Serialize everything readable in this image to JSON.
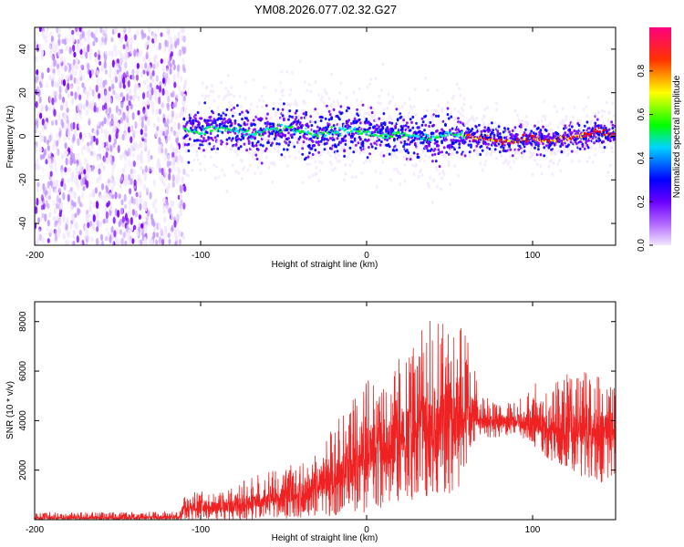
{
  "page": {
    "title": "YM08.2026.077.02.32.G27"
  },
  "chart_data": [
    {
      "type": "heatmap",
      "xlabel": "Height of straight line (km)",
      "ylabel": "Frequency (Hz)",
      "xlim": [
        -200,
        150
      ],
      "ylim": [
        -50,
        50
      ],
      "xticks": [
        -200,
        -100,
        0,
        100
      ],
      "xtick_labels": [
        "-200",
        "-100",
        "0",
        "100"
      ],
      "yticks": [
        -40,
        -20,
        0,
        20,
        40
      ],
      "ytick_labels": [
        "-40",
        "-20",
        "0",
        "20",
        "40"
      ],
      "grid": false,
      "colorbar": {
        "label": "Normalized spectral amplitude",
        "range": [
          0,
          1
        ],
        "ticks": [
          0,
          0.2,
          0.4,
          0.6,
          0.8
        ],
        "tick_labels": [
          "0.0",
          "0.2",
          "0.4",
          "0.6",
          "0.8"
        ],
        "colors": [
          "#f2e6ff",
          "#7a00ff",
          "#0000ff",
          "#00e5ff",
          "#00ff00",
          "#ffff00",
          "#ff6600",
          "#ff0000",
          "#ff0080"
        ]
      },
      "ridge": {
        "x": [
          -110,
          -100,
          -90,
          -80,
          -70,
          -60,
          -50,
          -40,
          -30,
          -20,
          -10,
          0,
          10,
          20,
          30,
          40,
          50,
          60,
          70,
          80,
          90,
          100,
          110,
          120,
          130,
          140,
          150
        ],
        "y": [
          3,
          2,
          4,
          3,
          1,
          2,
          4,
          3,
          1,
          2,
          3,
          2,
          0,
          1,
          0,
          -1,
          1,
          0,
          -1,
          -2,
          -2,
          -1,
          -2,
          -1,
          0,
          2,
          1
        ]
      }
    },
    {
      "type": "line",
      "xlabel": "Height of straight line (km)",
      "ylabel": "SNR (10 * v/v)",
      "xlim": [
        -200,
        150
      ],
      "ylim": [
        0,
        8800
      ],
      "xticks": [
        -200,
        -100,
        0,
        100
      ],
      "xtick_labels": [
        "-200",
        "-100",
        "0",
        "100"
      ],
      "yticks": [
        2000,
        4000,
        6000,
        8000
      ],
      "ytick_labels": [
        "2000",
        "4000",
        "6000",
        "8000"
      ],
      "color": "#ee2222",
      "grid": false,
      "envelope": {
        "x": [
          -200,
          -150,
          -112,
          -110,
          -100,
          -90,
          -80,
          -70,
          -60,
          -50,
          -40,
          -30,
          -20,
          -10,
          0,
          10,
          20,
          30,
          40,
          50,
          55,
          60,
          65,
          70,
          80,
          90,
          100,
          110,
          120,
          130,
          140,
          150
        ],
        "upper": [
          300,
          300,
          350,
          900,
          1300,
          1100,
          1300,
          1800,
          1900,
          2100,
          2400,
          2700,
          3800,
          4800,
          5600,
          6000,
          6700,
          7400,
          8200,
          8000,
          8400,
          7600,
          6100,
          5000,
          4700,
          4900,
          5600,
          5200,
          6000,
          6200,
          5800,
          5300
        ],
        "lower": [
          0,
          0,
          0,
          0,
          0,
          0,
          0,
          0,
          0,
          0,
          50,
          100,
          150,
          200,
          300,
          400,
          600,
          800,
          900,
          1000,
          1100,
          2200,
          3000,
          3300,
          3300,
          3500,
          3000,
          2400,
          2000,
          1600,
          1500,
          1300
        ],
        "center": [
          80,
          80,
          100,
          400,
          600,
          500,
          550,
          700,
          900,
          1000,
          1100,
          1300,
          1700,
          2200,
          2800,
          3100,
          3400,
          3900,
          4200,
          4300,
          4400,
          4600,
          4300,
          4100,
          4000,
          4000,
          3900,
          3700,
          3800,
          3800,
          3700,
          3600
        ]
      }
    }
  ]
}
